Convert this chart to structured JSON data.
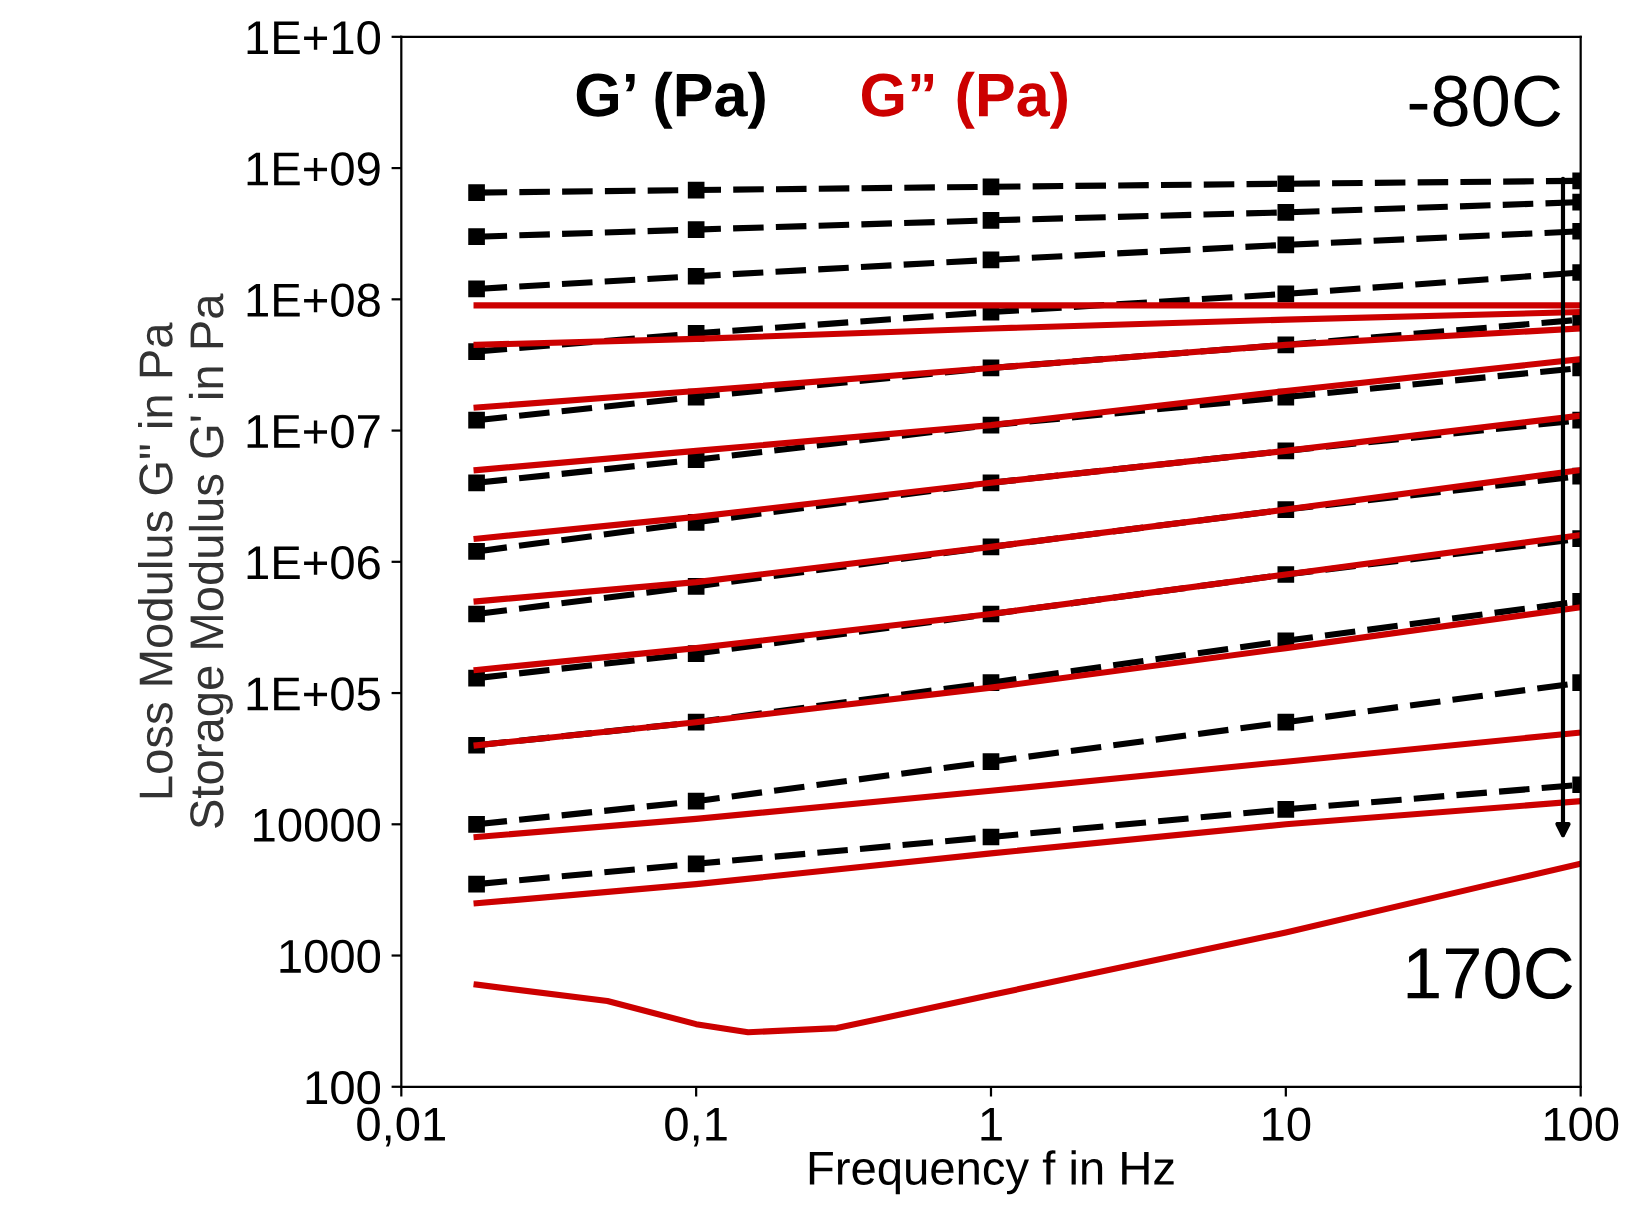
{
  "chart_data": {
    "type": "line",
    "xlabel": "Frequency f in Hz",
    "ylabel": "Loss Modulus G\" in Pa\nStorage Modulus G' in Pa",
    "log": "xy",
    "x": [
      0.018,
      0.1,
      1,
      10,
      100
    ],
    "xlim": [
      0.01,
      100
    ],
    "xticks": [
      {
        "value": 0.01,
        "label": "0,01"
      },
      {
        "value": 0.1,
        "label": "0,1"
      },
      1,
      10,
      100
    ],
    "ylim": [
      100,
      10000000000
    ],
    "yticks": [
      100,
      1000,
      10000,
      {
        "value": 100000,
        "label": "1E+05"
      },
      {
        "value": 1000000,
        "label": "1E+06"
      },
      {
        "value": 10000000,
        "label": "1E+07"
      },
      {
        "value": 100000000,
        "label": "1E+08"
      },
      {
        "value": 1000000000,
        "label": "1E+09"
      },
      {
        "value": 10000000000,
        "label": "1E+10"
      }
    ],
    "grid": false,
    "legend": "top left",
    "series": [
      {
        "name": "G’ (Pa)",
        "color": "#000000",
        "line_style": "dashed",
        "marker": "square",
        "values": [
          650000000,
          680000000,
          720000000,
          760000000,
          800000000
        ]
      },
      {
        "color": "#000000",
        "line_style": "dashed",
        "marker": "square",
        "values": [
          300000000,
          340000000,
          400000000,
          460000000,
          550000000
        ]
      },
      {
        "color": "#000000",
        "line_style": "dashed",
        "marker": "square",
        "values": [
          120000000,
          150000000,
          200000000,
          260000000,
          330000000
        ]
      },
      {
        "color": "#000000",
        "line_style": "dashed",
        "marker": "square",
        "values": [
          40000000,
          55000000,
          80000000,
          110000000,
          160000000
        ]
      },
      {
        "color": "#000000",
        "line_style": "dashed",
        "marker": "square",
        "values": [
          12000000,
          18000000,
          30000000,
          45000000,
          70000000
        ]
      },
      {
        "color": "#000000",
        "line_style": "dashed",
        "marker": "square",
        "values": [
          4000000,
          6000000,
          11000000,
          18000000,
          30000000
        ]
      },
      {
        "color": "#000000",
        "line_style": "dashed",
        "marker": "square",
        "values": [
          1200000,
          2000000,
          4000000,
          7000000,
          12000000
        ]
      },
      {
        "color": "#000000",
        "line_style": "dashed",
        "marker": "square",
        "values": [
          400000,
          650000,
          1300000,
          2500000,
          4500000
        ]
      },
      {
        "color": "#000000",
        "line_style": "dashed",
        "marker": "square",
        "values": [
          130000,
          200000,
          400000,
          800000,
          1500000
        ]
      },
      {
        "color": "#000000",
        "line_style": "dashed",
        "marker": "square",
        "values": [
          40000,
          60000,
          120000,
          250000,
          500000
        ]
      },
      {
        "color": "#000000",
        "line_style": "dashed",
        "marker": "square",
        "values": [
          10000,
          15000,
          30000,
          60000,
          120000
        ]
      },
      {
        "color": "#000000",
        "line_style": "dashed",
        "marker": "square",
        "values": [
          3500,
          5000,
          8000,
          13000,
          20000
        ]
      },
      {
        "name": "G” (Pa)",
        "color": "#cc0000",
        "line_style": "solid",
        "marker": "none",
        "values": [
          90000000,
          90000000,
          90000000,
          90000000,
          90000000
        ]
      },
      {
        "color": "#cc0000",
        "line_style": "solid",
        "marker": "none",
        "values": [
          45000000,
          50000000,
          60000000,
          70000000,
          80000000
        ]
      },
      {
        "color": "#cc0000",
        "line_style": "solid",
        "marker": "none",
        "values": [
          15000000,
          20000000,
          30000000,
          45000000,
          60000000
        ]
      },
      {
        "color": "#cc0000",
        "line_style": "solid",
        "marker": "none",
        "values": [
          5000000,
          7000000,
          11000000,
          20000000,
          35000000
        ]
      },
      {
        "color": "#cc0000",
        "line_style": "solid",
        "marker": "none",
        "values": [
          1500000,
          2200000,
          4000000,
          7000000,
          13000000
        ]
      },
      {
        "color": "#cc0000",
        "line_style": "solid",
        "marker": "none",
        "values": [
          500000,
          700000,
          1300000,
          2500000,
          5000000
        ]
      },
      {
        "color": "#cc0000",
        "line_style": "solid",
        "marker": "none",
        "values": [
          150000,
          220000,
          400000,
          800000,
          1600000
        ]
      },
      {
        "color": "#cc0000",
        "line_style": "solid",
        "marker": "none",
        "values": [
          40000,
          60000,
          110000,
          220000,
          450000
        ]
      },
      {
        "color": "#cc0000",
        "line_style": "solid",
        "marker": "none",
        "values": [
          8000,
          11000,
          18000,
          30000,
          50000
        ]
      },
      {
        "color": "#cc0000",
        "line_style": "solid",
        "marker": "none",
        "values": [
          2500,
          3500,
          6000,
          10000,
          15000
        ]
      },
      {
        "color": "#cc0000",
        "line_style": "solid",
        "marker": "none",
        "x": [
          0.018,
          0.05,
          0.1,
          0.15,
          0.3,
          1,
          10,
          50,
          100
        ],
        "values": [
          600,
          450,
          300,
          260,
          280,
          500,
          1500,
          3500,
          5000
        ]
      }
    ],
    "annotations": [
      "-80C",
      "170C"
    ]
  }
}
